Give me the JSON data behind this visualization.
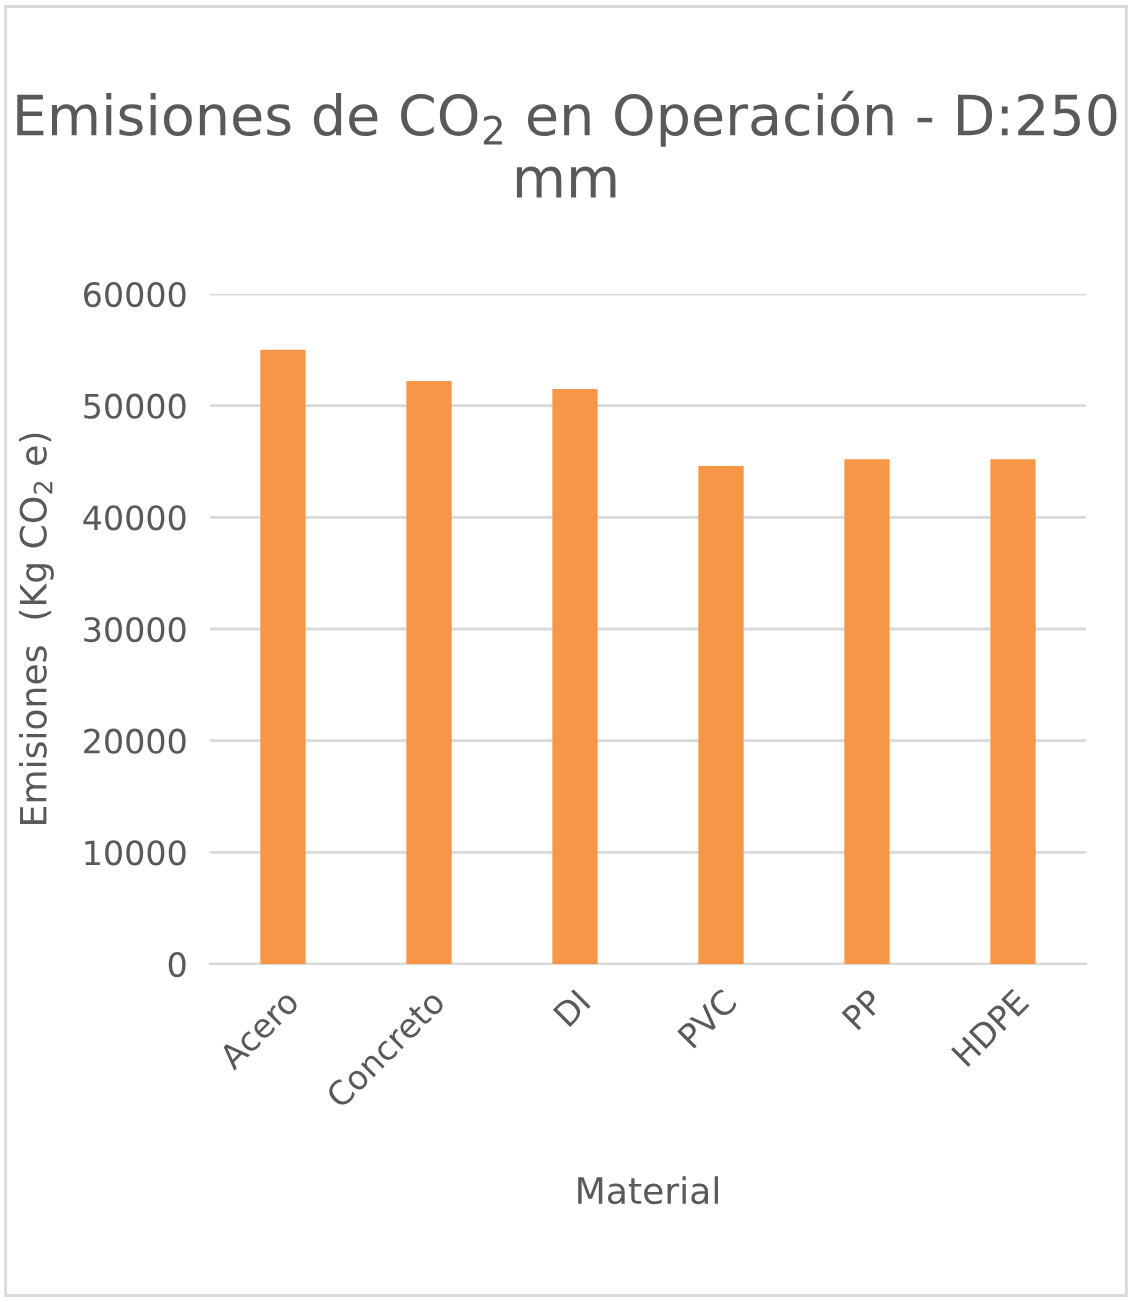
{
  "chart_data": {
    "type": "bar",
    "title": "Emisiones de CO$_{2}$ en Operación - D:250 mm",
    "xlabel": "Material",
    "ylabel": "Emisiones  (Kg CO$_{2}$ e)",
    "categories": [
      "Acero",
      "Concreto",
      "DI",
      "PVC",
      "PP",
      "HDPE"
    ],
    "values": [
      55000,
      52200,
      51500,
      44600,
      45200,
      45200
    ],
    "color": "#f79646",
    "ylim": [
      0,
      60000
    ],
    "yticks": [
      0,
      10000,
      20000,
      30000,
      40000,
      50000,
      60000
    ],
    "grid": "y"
  }
}
